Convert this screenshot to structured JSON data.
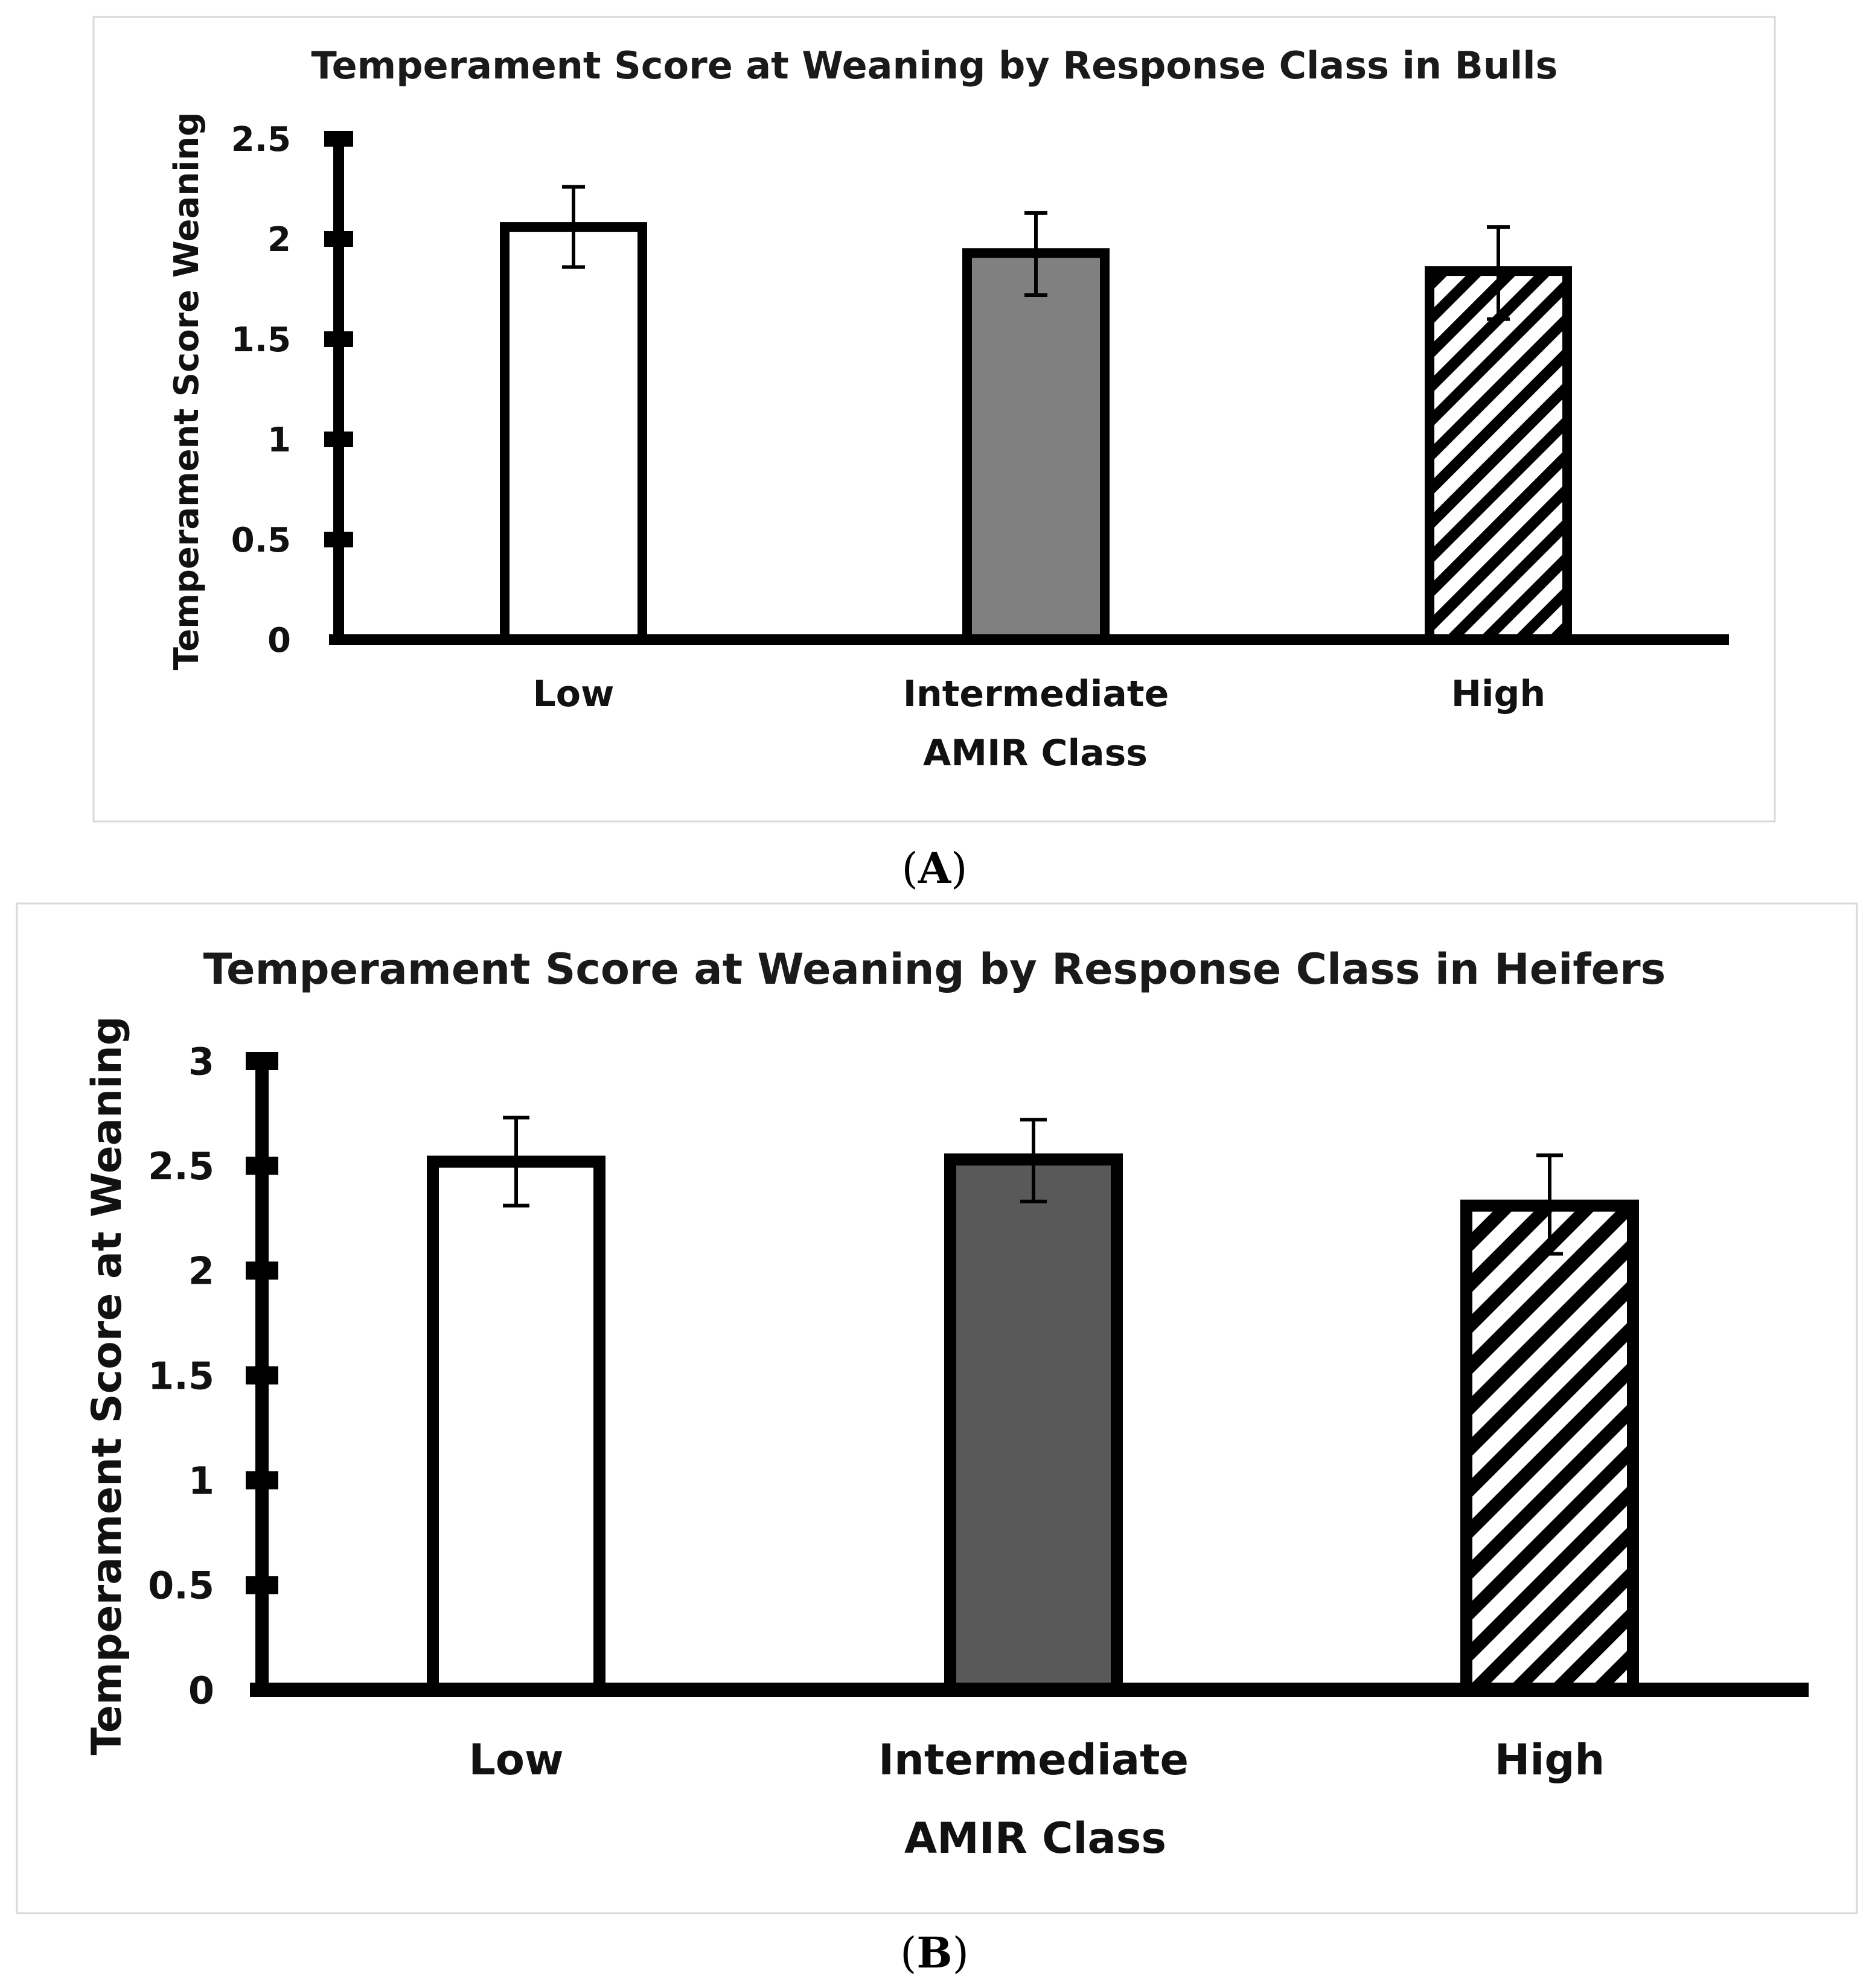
{
  "figure": {
    "panel_labels": [
      {
        "open": "(",
        "letter": "A",
        "close": ")"
      },
      {
        "open": "(",
        "letter": "B",
        "close": ")"
      }
    ]
  },
  "chart_data": [
    {
      "type": "bar",
      "title": "Temperament Score at Weaning by Response Class in Bulls",
      "xlabel": "AMIR Class",
      "ylabel": "Temperament Score Weaning",
      "categories": [
        "Low",
        "Intermediate",
        "High"
      ],
      "values": [
        2.06,
        1.93,
        1.84
      ],
      "error_low": [
        1.86,
        1.72,
        1.6
      ],
      "error_high": [
        2.26,
        2.13,
        2.06
      ],
      "ylim": [
        0,
        2.5
      ],
      "yticks": [
        0,
        0.5,
        1,
        1.5,
        2,
        2.5
      ],
      "ytick_labels": [
        "0",
        "0.5",
        "1",
        "1.5",
        "2",
        "2.5"
      ],
      "fills": [
        "white",
        "gray",
        "hatched"
      ],
      "colors": {
        "white": "#ffffff",
        "gray": "#808080",
        "hatch_line": "#000000"
      },
      "grid": false,
      "legend": "none"
    },
    {
      "type": "bar",
      "title": "Temperament Score at Weaning by Response Class in Heifers",
      "xlabel": "AMIR Class",
      "ylabel": "Temperament Score at Weaning",
      "categories": [
        "Low",
        "Intermediate",
        "High"
      ],
      "values": [
        2.52,
        2.53,
        2.31
      ],
      "error_low": [
        2.31,
        2.33,
        2.08
      ],
      "error_high": [
        2.73,
        2.72,
        2.55
      ],
      "ylim": [
        0,
        3
      ],
      "yticks": [
        0,
        0.5,
        1,
        1.5,
        2,
        2.5,
        3
      ],
      "ytick_labels": [
        "0",
        "0.5",
        "1",
        "1.5",
        "2",
        "2.5",
        "3"
      ],
      "fills": [
        "white",
        "gray",
        "hatched"
      ],
      "colors": {
        "white": "#ffffff",
        "gray": "#595959",
        "hatch_line": "#000000"
      },
      "grid": false,
      "legend": "none"
    }
  ]
}
